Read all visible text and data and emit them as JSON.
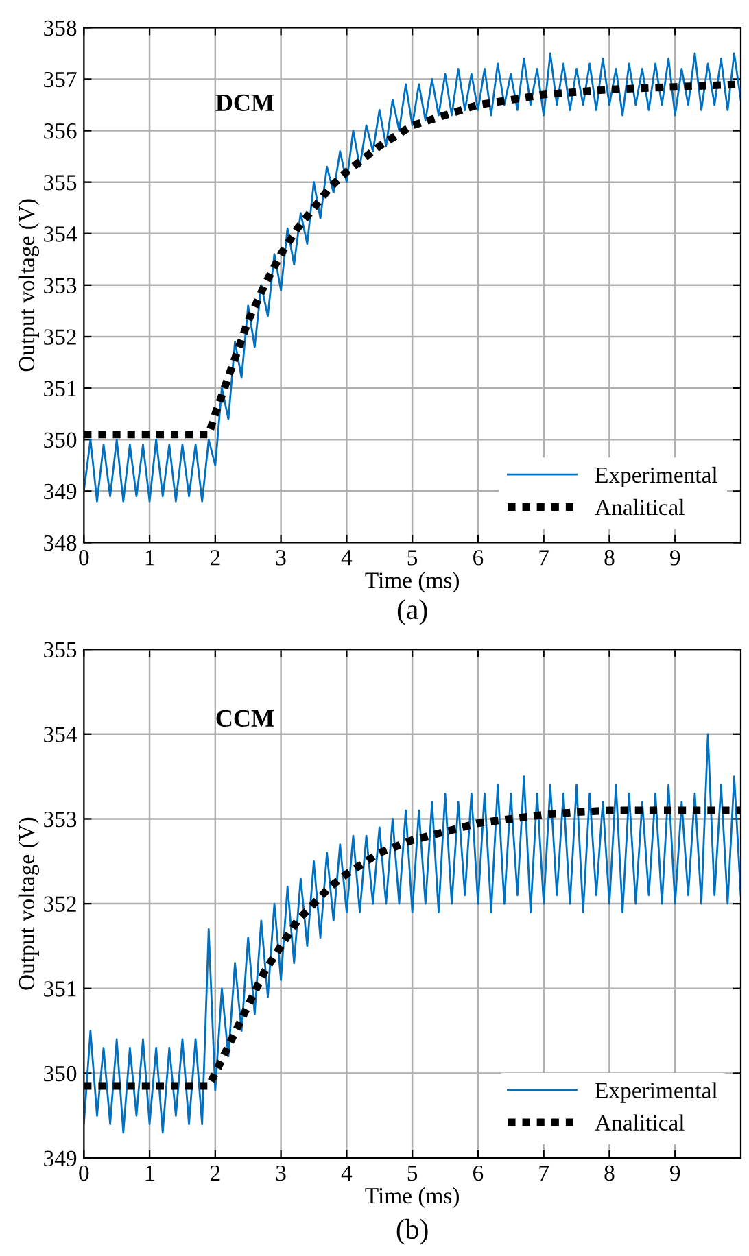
{
  "chart_data": [
    {
      "type": "line",
      "xlabel": "Time (ms)",
      "ylabel": "Output voltage (V)",
      "annotations": [
        "DCM",
        "(a)"
      ],
      "xlim": [
        0,
        10
      ],
      "xticks": [
        0,
        1,
        2,
        3,
        4,
        5,
        6,
        7,
        8,
        9
      ],
      "ylim": [
        348,
        358
      ],
      "yticks": [
        348,
        349,
        350,
        351,
        352,
        353,
        354,
        355,
        356,
        357,
        358
      ],
      "grid": true,
      "legend": "bottom right",
      "marker": "none",
      "series": [
        {
          "name": "Experimental",
          "color": "#0070c0",
          "line_style": "solid",
          "x": [
            0,
            0.1,
            0.2,
            0.3,
            0.4,
            0.5,
            0.6,
            0.7,
            0.8,
            0.9,
            1,
            1.1,
            1.2,
            1.3,
            1.4,
            1.5,
            1.6,
            1.7,
            1.8,
            1.9,
            2,
            2.1,
            2.2,
            2.3,
            2.4,
            2.5,
            2.6,
            2.7,
            2.8,
            2.9,
            3,
            3.1,
            3.2,
            3.3,
            3.4,
            3.5,
            3.6,
            3.7,
            3.8,
            3.9,
            4,
            4.1,
            4.2,
            4.3,
            4.4,
            4.5,
            4.6,
            4.7,
            4.8,
            4.9,
            5,
            5.1,
            5.2,
            5.3,
            5.4,
            5.5,
            5.6,
            5.7,
            5.8,
            5.9,
            6,
            6.1,
            6.2,
            6.3,
            6.4,
            6.5,
            6.6,
            6.7,
            6.8,
            6.9,
            7,
            7.1,
            7.2,
            7.3,
            7.4,
            7.5,
            7.6,
            7.7,
            7.8,
            7.9,
            8,
            8.1,
            8.2,
            8.3,
            8.4,
            8.5,
            8.6,
            8.7,
            8.8,
            8.9,
            9,
            9.1,
            9.2,
            9.3,
            9.4,
            9.5,
            9.6,
            9.7,
            9.8,
            9.9,
            10
          ],
          "values": [
            349.0,
            350.0,
            348.8,
            349.9,
            348.9,
            350.0,
            348.8,
            349.9,
            348.9,
            349.9,
            348.8,
            350.0,
            348.9,
            349.9,
            348.8,
            349.9,
            348.9,
            349.9,
            348.8,
            350.0,
            349.5,
            351.0,
            350.4,
            351.9,
            351.2,
            352.6,
            351.8,
            353.0,
            352.4,
            353.6,
            352.9,
            354.1,
            353.4,
            354.4,
            353.8,
            355.0,
            354.3,
            355.3,
            354.8,
            355.6,
            355.0,
            356.0,
            355.3,
            356.1,
            355.6,
            356.4,
            355.7,
            356.6,
            356.0,
            356.9,
            356.1,
            356.9,
            356.2,
            357.0,
            356.3,
            357.1,
            356.3,
            357.2,
            356.4,
            357.1,
            356.4,
            357.2,
            356.3,
            357.3,
            356.5,
            357.1,
            356.4,
            357.4,
            356.5,
            357.2,
            356.3,
            357.5,
            356.5,
            357.3,
            356.4,
            357.2,
            356.5,
            357.3,
            356.4,
            357.4,
            356.5,
            357.2,
            356.3,
            357.3,
            356.5,
            357.2,
            356.4,
            357.3,
            356.5,
            357.4,
            356.3,
            357.2,
            356.5,
            357.5,
            356.4,
            357.3,
            356.5,
            357.4,
            356.4,
            357.5,
            356.6
          ]
        },
        {
          "name": "Analitical",
          "color": "#000000",
          "line_style": "dotted",
          "x": [
            0,
            1.9,
            2,
            2.25,
            2.5,
            2.75,
            3,
            3.25,
            3.5,
            3.75,
            4,
            4.5,
            5,
            5.5,
            6,
            6.5,
            7,
            7.5,
            8,
            9,
            10
          ],
          "values": [
            350.1,
            350.1,
            350.5,
            351.4,
            352.3,
            353.0,
            353.6,
            354.1,
            354.5,
            354.9,
            355.2,
            355.7,
            356.1,
            356.3,
            356.5,
            356.6,
            356.7,
            356.75,
            356.8,
            356.85,
            356.9
          ]
        }
      ]
    },
    {
      "type": "line",
      "xlabel": "Time (ms)",
      "ylabel": "Output voltage (V)",
      "annotations": [
        "CCM",
        "(b)"
      ],
      "xlim": [
        0,
        10
      ],
      "xticks": [
        0,
        1,
        2,
        3,
        4,
        5,
        6,
        7,
        8,
        9
      ],
      "ylim": [
        349,
        355
      ],
      "yticks": [
        349,
        350,
        351,
        352,
        353,
        354,
        355
      ],
      "grid": true,
      "legend": "bottom right",
      "marker": "none",
      "series": [
        {
          "name": "Experimental",
          "color": "#0070c0",
          "line_style": "solid",
          "x": [
            0,
            0.1,
            0.2,
            0.3,
            0.4,
            0.5,
            0.6,
            0.7,
            0.8,
            0.9,
            1,
            1.1,
            1.2,
            1.3,
            1.4,
            1.5,
            1.6,
            1.7,
            1.8,
            1.9,
            2,
            2.1,
            2.2,
            2.3,
            2.4,
            2.5,
            2.6,
            2.7,
            2.8,
            2.9,
            3,
            3.1,
            3.2,
            3.3,
            3.4,
            3.5,
            3.6,
            3.7,
            3.8,
            3.9,
            4,
            4.1,
            4.2,
            4.3,
            4.4,
            4.5,
            4.6,
            4.7,
            4.8,
            4.9,
            5,
            5.1,
            5.2,
            5.3,
            5.4,
            5.5,
            5.6,
            5.7,
            5.8,
            5.9,
            6,
            6.1,
            6.2,
            6.3,
            6.4,
            6.5,
            6.6,
            6.7,
            6.8,
            6.9,
            7,
            7.1,
            7.2,
            7.3,
            7.4,
            7.5,
            7.6,
            7.7,
            7.8,
            7.9,
            8,
            8.1,
            8.2,
            8.3,
            8.4,
            8.5,
            8.6,
            8.7,
            8.8,
            8.9,
            9,
            9.1,
            9.2,
            9.3,
            9.4,
            9.5,
            9.6,
            9.7,
            9.8,
            9.9,
            10
          ],
          "values": [
            349.4,
            350.5,
            349.5,
            350.3,
            349.4,
            350.4,
            349.3,
            350.3,
            349.5,
            350.4,
            349.4,
            350.3,
            349.3,
            350.3,
            349.5,
            350.4,
            349.4,
            350.4,
            349.4,
            351.7,
            349.8,
            351.0,
            350.2,
            351.3,
            350.5,
            351.6,
            350.7,
            351.8,
            350.9,
            352.0,
            351.1,
            352.2,
            351.3,
            352.3,
            351.5,
            352.5,
            351.6,
            352.6,
            351.8,
            352.7,
            351.9,
            352.8,
            351.9,
            352.8,
            352.0,
            352.9,
            352.0,
            353.0,
            352.0,
            353.1,
            351.9,
            353.1,
            352.0,
            353.2,
            351.9,
            353.3,
            352.0,
            353.2,
            352.1,
            353.3,
            352.0,
            353.3,
            351.9,
            353.4,
            352.0,
            353.3,
            352.1,
            353.5,
            351.9,
            353.3,
            352.0,
            353.4,
            352.1,
            353.3,
            352.0,
            353.4,
            351.9,
            353.3,
            352.1,
            353.2,
            352.0,
            353.4,
            351.9,
            353.3,
            352.0,
            353.2,
            352.1,
            353.3,
            352.0,
            353.4,
            352.0,
            353.2,
            352.1,
            353.3,
            352.0,
            354.0,
            352.1,
            353.4,
            352.0,
            353.5,
            352.1
          ]
        },
        {
          "name": "Analitical",
          "color": "#000000",
          "line_style": "dotted",
          "x": [
            0,
            1.9,
            2,
            2.25,
            2.5,
            2.75,
            3,
            3.25,
            3.5,
            3.75,
            4,
            4.5,
            5,
            5.5,
            6,
            6.5,
            7,
            7.5,
            8,
            9,
            10
          ],
          "values": [
            349.85,
            349.85,
            350.0,
            350.4,
            350.8,
            351.2,
            351.5,
            351.8,
            352.0,
            352.2,
            352.35,
            352.6,
            352.75,
            352.85,
            352.95,
            353.0,
            353.05,
            353.08,
            353.1,
            353.1,
            353.1
          ]
        }
      ]
    }
  ]
}
